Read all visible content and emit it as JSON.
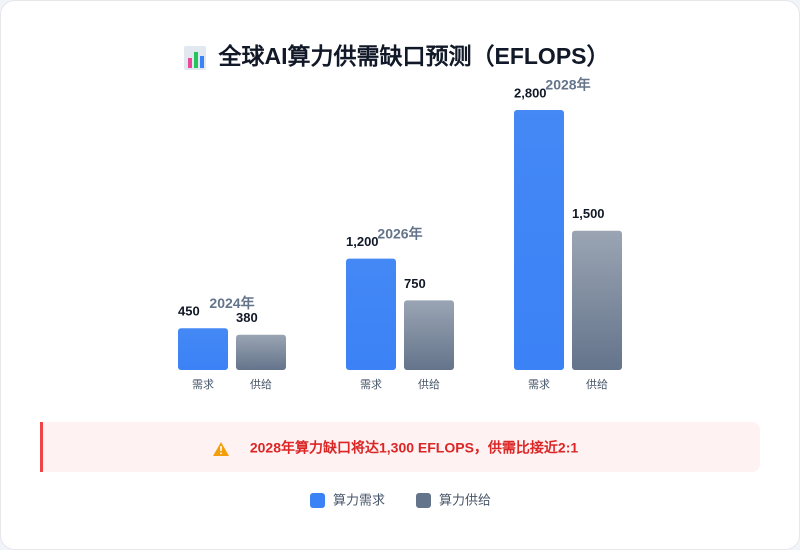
{
  "chart_data": {
    "type": "bar",
    "title": "全球AI算力供需缺口预测（EFLOPS）",
    "categories": [
      "2024年",
      "2026年",
      "2028年"
    ],
    "bar_labels": [
      "需求",
      "供给"
    ],
    "series": [
      {
        "name": "算力需求",
        "color": "#3b82f6",
        "values": [
          450,
          1200,
          2800
        ],
        "value_labels": [
          "450",
          "1,200",
          "2,800"
        ]
      },
      {
        "name": "算力供给",
        "color": "#64748b",
        "values": [
          380,
          750,
          1500
        ],
        "value_labels": [
          "380",
          "750",
          "1,500"
        ]
      }
    ],
    "annotation": "2028年算力缺口将达1,300 EFLOPS，供需比接近2:1"
  }
}
